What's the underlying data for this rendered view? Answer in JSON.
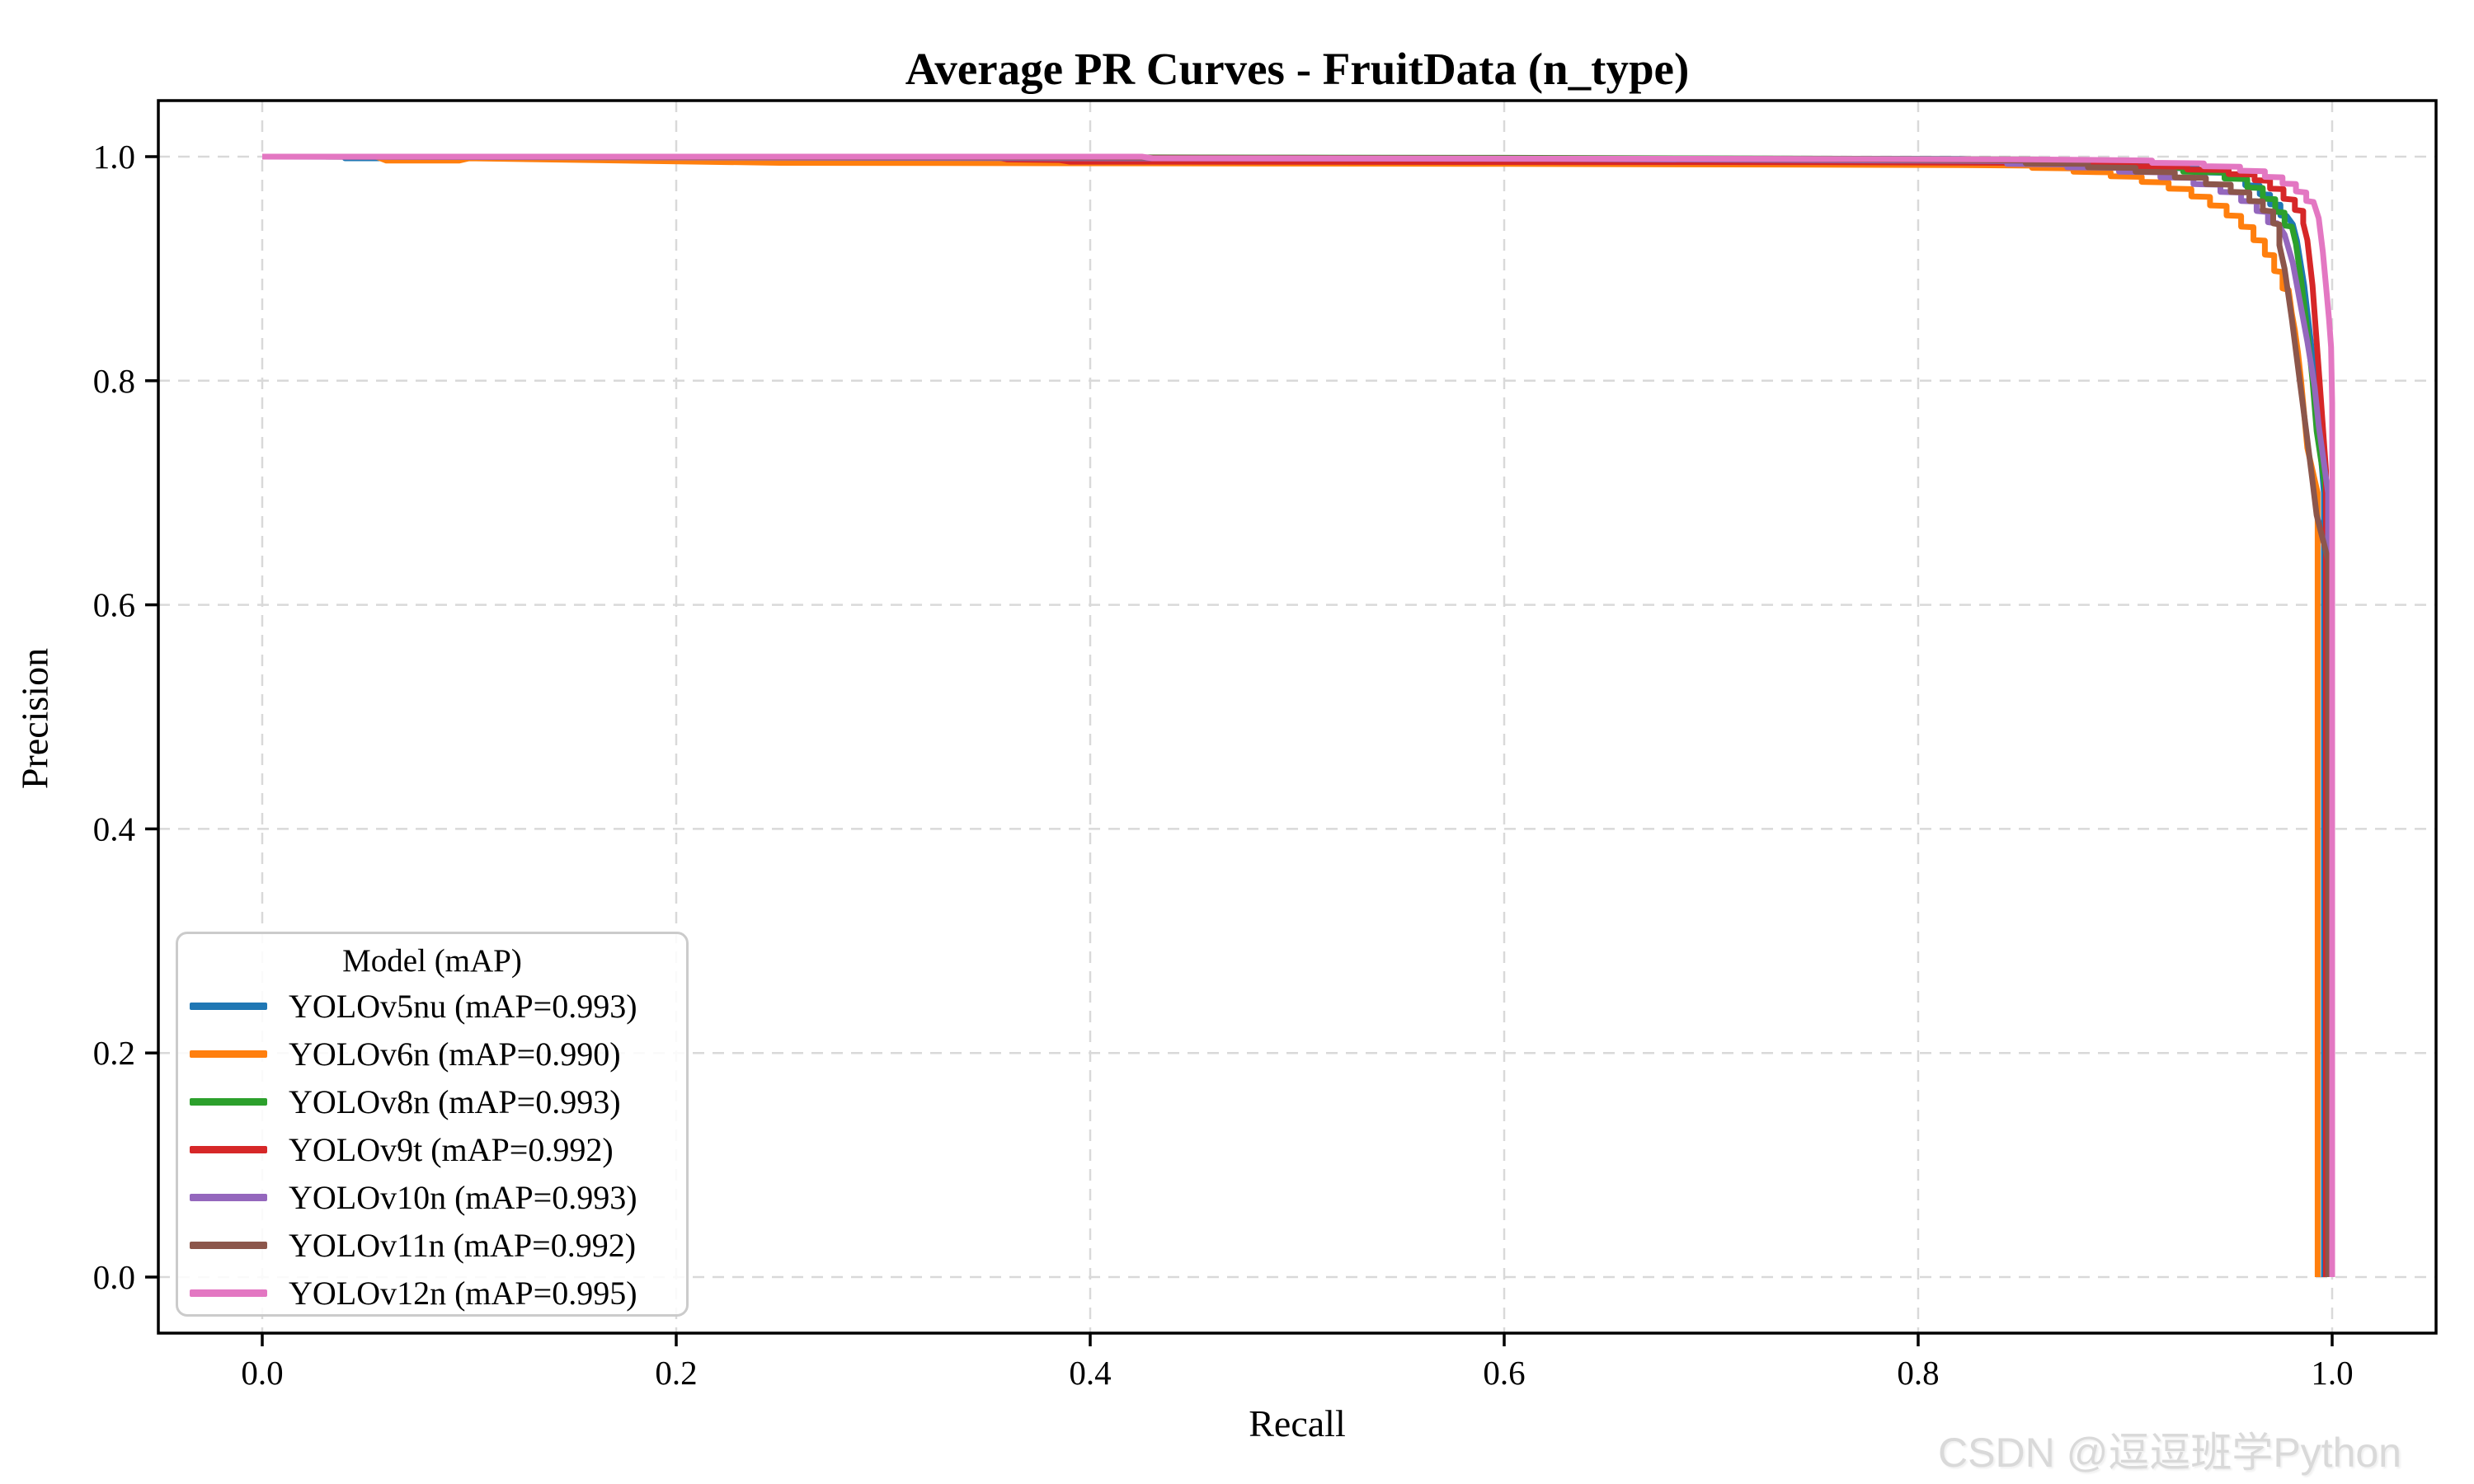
{
  "figure": {
    "watermark": "CSDN @逗逗班学Python"
  },
  "chart_data": {
    "type": "line",
    "title": "Average PR Curves - FruitData (n_type)",
    "xlabel": "Recall",
    "ylabel": "Precision",
    "xlim": [
      -0.05,
      1.05
    ],
    "ylim": [
      -0.05,
      1.05
    ],
    "xticks": [
      0.0,
      0.2,
      0.4,
      0.6,
      0.8,
      1.0
    ],
    "yticks": [
      0.0,
      0.2,
      0.4,
      0.6,
      0.8,
      1.0
    ],
    "grid": "dashed",
    "grid_color": "#d9d9d9",
    "legend": {
      "title": "Model (mAP)",
      "position": "lower-left"
    },
    "series": [
      {
        "name": "YOLOv5nu",
        "map": 0.993,
        "label": "YOLOv5nu (mAP=0.993)",
        "color": "#1f77b4",
        "points": [
          [
            0,
            1
          ],
          [
            0.04,
            1
          ],
          [
            0.04,
            0.9985
          ],
          [
            0.55,
            0.9985
          ],
          [
            0.82,
            0.998
          ],
          [
            0.86,
            0.996
          ],
          [
            0.89,
            0.9955
          ],
          [
            0.89,
            0.9935
          ],
          [
            0.915,
            0.993
          ],
          [
            0.915,
            0.99
          ],
          [
            0.935,
            0.9895
          ],
          [
            0.935,
            0.986
          ],
          [
            0.95,
            0.9855
          ],
          [
            0.95,
            0.981
          ],
          [
            0.958,
            0.9805
          ],
          [
            0.958,
            0.9745
          ],
          [
            0.965,
            0.974
          ],
          [
            0.965,
            0.9665
          ],
          [
            0.97,
            0.966
          ],
          [
            0.97,
            0.9575
          ],
          [
            0.975,
            0.957
          ],
          [
            0.975,
            0.9475
          ],
          [
            0.978,
            0.947
          ],
          [
            0.981,
            0.9395
          ],
          [
            0.983,
            0.925
          ],
          [
            0.9865,
            0.885
          ],
          [
            0.99,
            0.83
          ],
          [
            0.9925,
            0.78
          ],
          [
            0.996,
            0.7
          ],
          [
            0.996,
            0
          ]
        ]
      },
      {
        "name": "YOLOv6n",
        "map": 0.99,
        "label": "YOLOv6n (mAP=0.990)",
        "color": "#ff7f0e",
        "points": [
          [
            0,
            1
          ],
          [
            0.055,
            1
          ],
          [
            0.06,
            0.9965
          ],
          [
            0.095,
            0.9965
          ],
          [
            0.1,
            0.9985
          ],
          [
            0.25,
            0.9945
          ],
          [
            0.6,
            0.9935
          ],
          [
            0.82,
            0.9925
          ],
          [
            0.855,
            0.992
          ],
          [
            0.855,
            0.99
          ],
          [
            0.875,
            0.9895
          ],
          [
            0.875,
            0.9865
          ],
          [
            0.893,
            0.986
          ],
          [
            0.893,
            0.9825
          ],
          [
            0.908,
            0.982
          ],
          [
            0.908,
            0.9775
          ],
          [
            0.921,
            0.977
          ],
          [
            0.921,
            0.9715
          ],
          [
            0.932,
            0.971
          ],
          [
            0.932,
            0.9645
          ],
          [
            0.941,
            0.964
          ],
          [
            0.941,
            0.9565
          ],
          [
            0.949,
            0.956
          ],
          [
            0.949,
            0.9475
          ],
          [
            0.956,
            0.947
          ],
          [
            0.956,
            0.9375
          ],
          [
            0.962,
            0.937
          ],
          [
            0.962,
            0.9255
          ],
          [
            0.9675,
            0.925
          ],
          [
            0.9675,
            0.9125
          ],
          [
            0.972,
            0.912
          ],
          [
            0.972,
            0.898
          ],
          [
            0.976,
            0.897
          ],
          [
            0.976,
            0.8825
          ],
          [
            0.979,
            0.881
          ],
          [
            0.9805,
            0.86
          ],
          [
            0.982,
            0.845
          ],
          [
            0.9835,
            0.825
          ],
          [
            0.985,
            0.8
          ],
          [
            0.9865,
            0.77
          ],
          [
            0.988,
            0.74
          ],
          [
            0.993,
            0.7
          ],
          [
            0.993,
            0
          ]
        ]
      },
      {
        "name": "YOLOv8n",
        "map": 0.993,
        "label": "YOLOv8n (mAP=0.993)",
        "color": "#2ca02c",
        "points": [
          [
            0,
            1
          ],
          [
            0.35,
            0.9995
          ],
          [
            0.6,
            0.999
          ],
          [
            0.8,
            0.998
          ],
          [
            0.858,
            0.9975
          ],
          [
            0.858,
            0.9935
          ],
          [
            0.9,
            0.993
          ],
          [
            0.9,
            0.9905
          ],
          [
            0.928,
            0.99
          ],
          [
            0.928,
            0.9865
          ],
          [
            0.948,
            0.986
          ],
          [
            0.948,
            0.9805
          ],
          [
            0.959,
            0.98
          ],
          [
            0.959,
            0.9725
          ],
          [
            0.9665,
            0.972
          ],
          [
            0.9665,
            0.9625
          ],
          [
            0.9725,
            0.962
          ],
          [
            0.9725,
            0.951
          ],
          [
            0.977,
            0.95
          ],
          [
            0.977,
            0.9385
          ],
          [
            0.9805,
            0.9375
          ],
          [
            0.9825,
            0.922
          ],
          [
            0.985,
            0.89
          ],
          [
            0.988,
            0.845
          ],
          [
            0.9905,
            0.8
          ],
          [
            0.9925,
            0.755
          ],
          [
            0.997,
            0.7
          ],
          [
            0.997,
            0
          ]
        ]
      },
      {
        "name": "YOLOv9t",
        "map": 0.992,
        "label": "YOLOv9t (mAP=0.992)",
        "color": "#d62728",
        "points": [
          [
            0,
            1
          ],
          [
            0.355,
            0.9995
          ],
          [
            0.36,
            0.9975
          ],
          [
            0.385,
            0.997
          ],
          [
            0.39,
            0.9955
          ],
          [
            0.75,
            0.995
          ],
          [
            0.85,
            0.9945
          ],
          [
            0.88,
            0.994
          ],
          [
            0.905,
            0.9935
          ],
          [
            0.905,
            0.9915
          ],
          [
            0.93,
            0.991
          ],
          [
            0.93,
            0.9885
          ],
          [
            0.95,
            0.988
          ],
          [
            0.95,
            0.9845
          ],
          [
            0.9625,
            0.984
          ],
          [
            0.9625,
            0.979
          ],
          [
            0.97,
            0.9785
          ],
          [
            0.97,
            0.9715
          ],
          [
            0.9765,
            0.971
          ],
          [
            0.9765,
            0.9625
          ],
          [
            0.982,
            0.9615
          ],
          [
            0.982,
            0.9525
          ],
          [
            0.986,
            0.9515
          ],
          [
            0.986,
            0.9405
          ],
          [
            0.988,
            0.9255
          ],
          [
            0.9905,
            0.885
          ],
          [
            0.9925,
            0.835
          ],
          [
            0.9945,
            0.785
          ],
          [
            0.997,
            0.72
          ],
          [
            0.997,
            0
          ]
        ]
      },
      {
        "name": "YOLOv10n",
        "map": 0.993,
        "label": "YOLOv10n (mAP=0.993)",
        "color": "#9467bd",
        "points": [
          [
            0,
            1
          ],
          [
            0.4,
            0.9985
          ],
          [
            0.62,
            0.998
          ],
          [
            0.8,
            0.9965
          ],
          [
            0.843,
            0.996
          ],
          [
            0.843,
            0.9935
          ],
          [
            0.872,
            0.993
          ],
          [
            0.872,
            0.9905
          ],
          [
            0.897,
            0.99
          ],
          [
            0.897,
            0.9865
          ],
          [
            0.917,
            0.986
          ],
          [
            0.917,
            0.9815
          ],
          [
            0.933,
            0.981
          ],
          [
            0.933,
            0.9755
          ],
          [
            0.946,
            0.975
          ],
          [
            0.946,
            0.9685
          ],
          [
            0.956,
            0.968
          ],
          [
            0.956,
            0.9605
          ],
          [
            0.9635,
            0.96
          ],
          [
            0.9635,
            0.9515
          ],
          [
            0.969,
            0.9505
          ],
          [
            0.969,
            0.9415
          ],
          [
            0.9735,
            0.9405
          ],
          [
            0.977,
            0.9305
          ],
          [
            0.981,
            0.905
          ],
          [
            0.9845,
            0.87
          ],
          [
            0.988,
            0.835
          ],
          [
            0.9915,
            0.795
          ],
          [
            0.9935,
            0.76
          ],
          [
            0.998,
            0.7
          ],
          [
            0.998,
            0
          ]
        ]
      },
      {
        "name": "YOLOv11n",
        "map": 0.992,
        "label": "YOLOv11n (mAP=0.992)",
        "color": "#8c564b",
        "points": [
          [
            0,
            1
          ],
          [
            0.3,
            0.9995
          ],
          [
            0.5,
            0.999
          ],
          [
            0.72,
            0.998
          ],
          [
            0.82,
            0.997
          ],
          [
            0.852,
            0.9965
          ],
          [
            0.852,
            0.994
          ],
          [
            0.882,
            0.9935
          ],
          [
            0.882,
            0.9905
          ],
          [
            0.905,
            0.99
          ],
          [
            0.905,
            0.9865
          ],
          [
            0.924,
            0.986
          ],
          [
            0.924,
            0.9815
          ],
          [
            0.939,
            0.981
          ],
          [
            0.939,
            0.9755
          ],
          [
            0.951,
            0.975
          ],
          [
            0.951,
            0.9685
          ],
          [
            0.96,
            0.968
          ],
          [
            0.96,
            0.9605
          ],
          [
            0.9665,
            0.96
          ],
          [
            0.9665,
            0.952
          ],
          [
            0.9715,
            0.951
          ],
          [
            0.9715,
            0.9405
          ],
          [
            0.9745,
            0.9395
          ],
          [
            0.9745,
            0.921
          ],
          [
            0.977,
            0.9
          ],
          [
            0.9805,
            0.855
          ],
          [
            0.984,
            0.805
          ],
          [
            0.9875,
            0.755
          ],
          [
            0.9905,
            0.71
          ],
          [
            0.9925,
            0.68
          ],
          [
            0.998,
            0.64
          ],
          [
            0.998,
            0
          ]
        ]
      },
      {
        "name": "YOLOv12n",
        "map": 0.995,
        "label": "YOLOv12n (mAP=0.995)",
        "color": "#e377c2",
        "points": [
          [
            0,
            1
          ],
          [
            0.425,
            1
          ],
          [
            0.43,
            0.9985
          ],
          [
            0.75,
            0.998
          ],
          [
            0.855,
            0.9975
          ],
          [
            0.89,
            0.997
          ],
          [
            0.913,
            0.9965
          ],
          [
            0.913,
            0.9945
          ],
          [
            0.938,
            0.994
          ],
          [
            0.938,
            0.9915
          ],
          [
            0.9555,
            0.991
          ],
          [
            0.9555,
            0.9875
          ],
          [
            0.9675,
            0.987
          ],
          [
            0.9675,
            0.982
          ],
          [
            0.976,
            0.9815
          ],
          [
            0.976,
            0.976
          ],
          [
            0.9825,
            0.9755
          ],
          [
            0.9825,
            0.969
          ],
          [
            0.9875,
            0.968
          ],
          [
            0.9875,
            0.9605
          ],
          [
            0.991,
            0.9595
          ],
          [
            0.9935,
            0.945
          ],
          [
            0.9955,
            0.915
          ],
          [
            0.997,
            0.885
          ],
          [
            0.9985,
            0.855
          ],
          [
            0.9995,
            0.83
          ],
          [
            1.0,
            0.78
          ],
          [
            1.0,
            0
          ]
        ]
      }
    ]
  }
}
